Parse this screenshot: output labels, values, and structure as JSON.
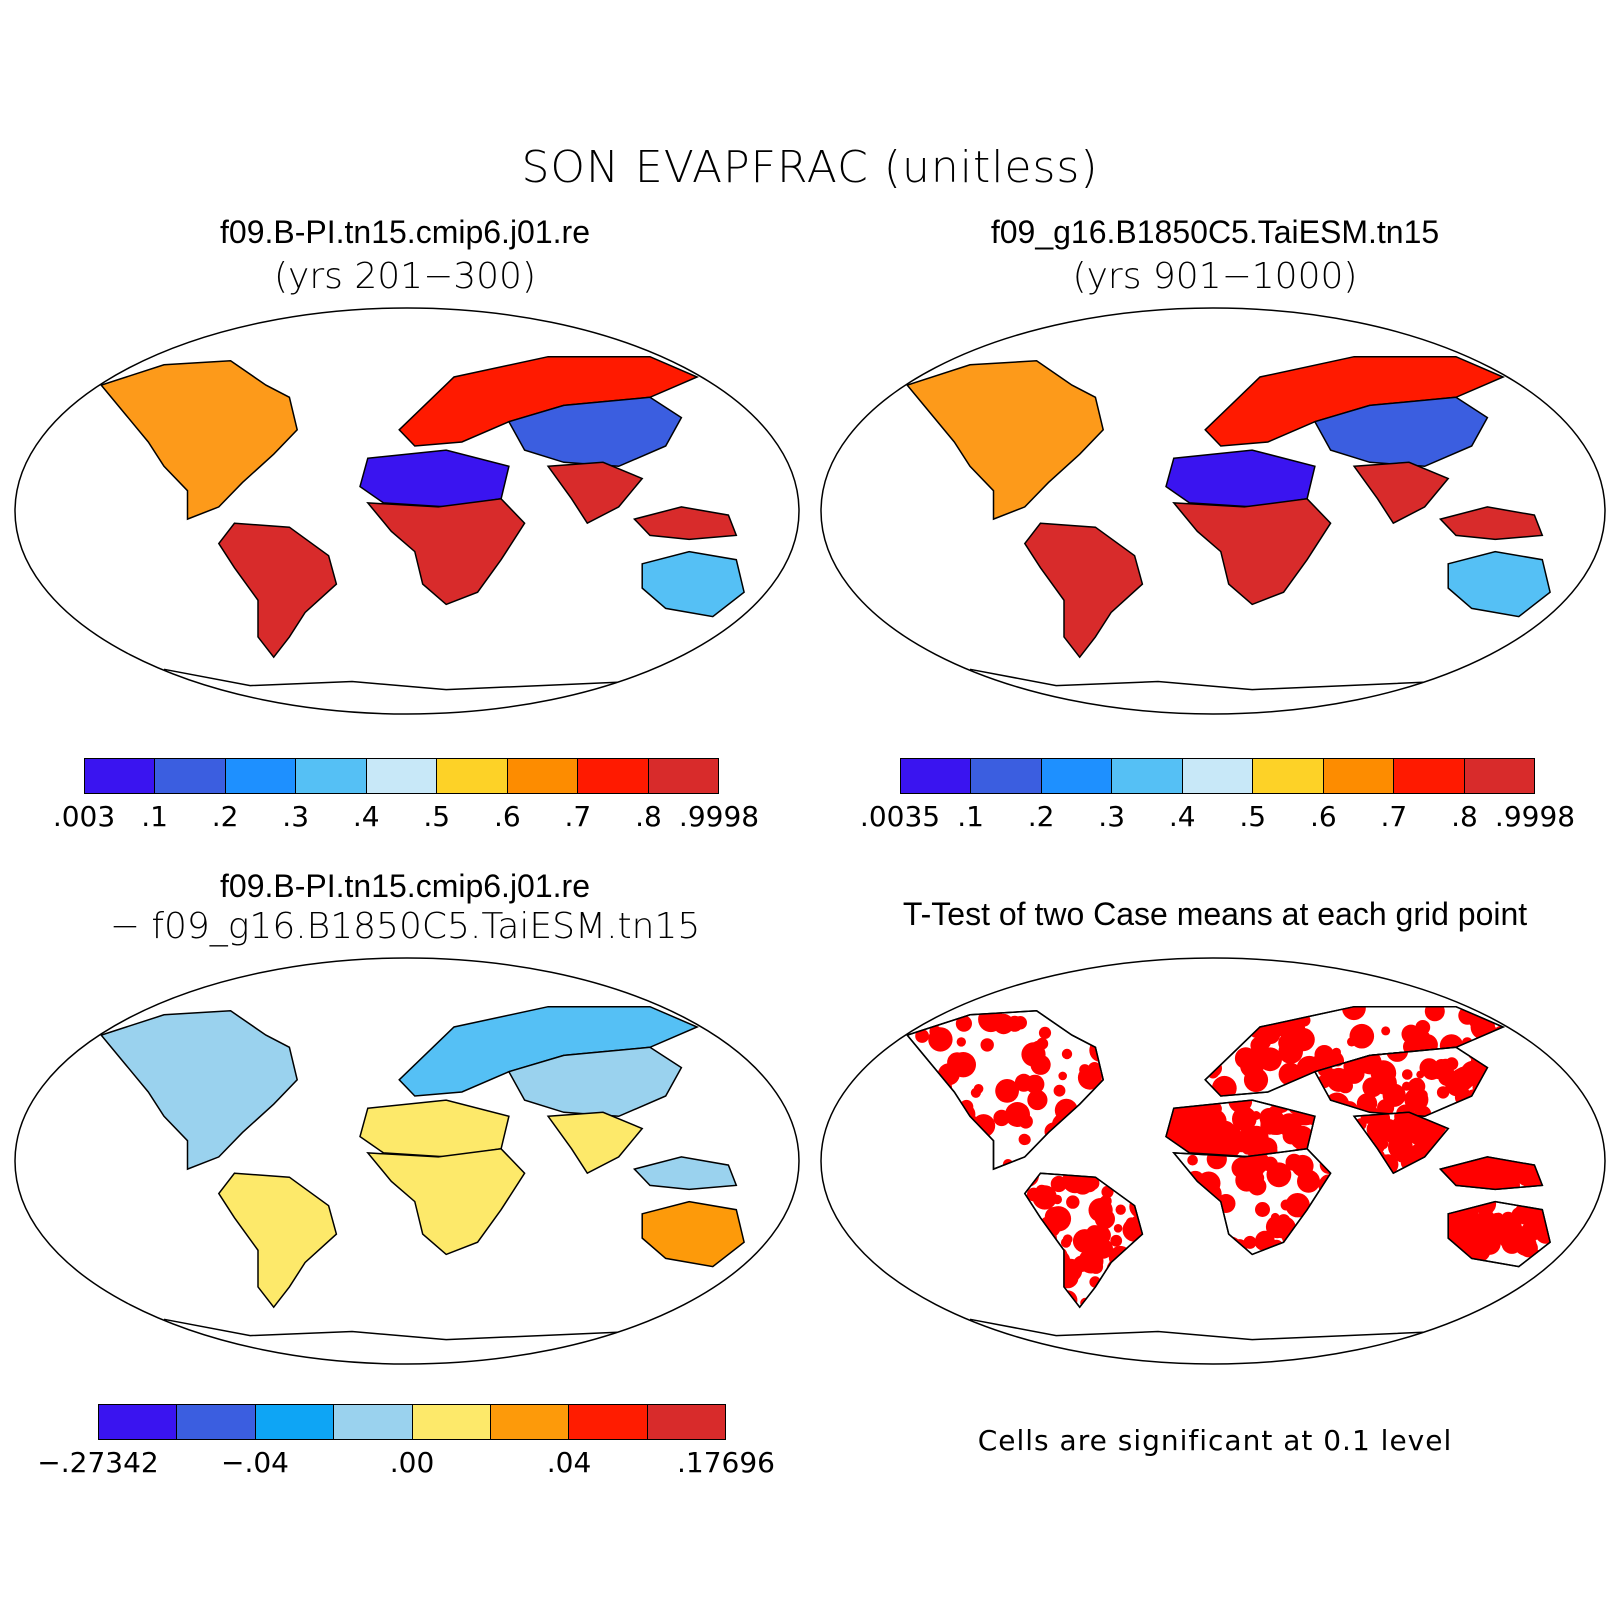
{
  "title": "SON EVAPFRAC (unitless)",
  "panels": [
    {
      "title": "f09.B-PI.tn15.cmip6.j01.re",
      "subtitle": "(yrs 201−300)"
    },
    {
      "title": "f09_g16.B1850C5.TaiESM.tn15",
      "subtitle": "(yrs 901−1000)"
    },
    {
      "title": "f09.B-PI.tn15.cmip6.j01.re",
      "subtitle": "− f09_g16.B1850C5.TaiESM.tn15"
    },
    {
      "title": "T-Test of two Case means at each grid point",
      "subtitle": ""
    }
  ],
  "colorbars": [
    {
      "colors": [
        "#3a14f0",
        "#3b5ee0",
        "#1e90ff",
        "#55c0f5",
        "#c8e8f8",
        "#fdd227",
        "#fd8c00",
        "#ff1a00",
        "#d82b2b"
      ],
      "labels": [
        ".003",
        ".1",
        ".2",
        ".3",
        ".4",
        ".5",
        ".6",
        ".7",
        ".8",
        ".9998"
      ]
    },
    {
      "colors": [
        "#3a14f0",
        "#3b5ee0",
        "#1e90ff",
        "#55c0f5",
        "#c8e8f8",
        "#fdd227",
        "#fd8c00",
        "#ff1a00",
        "#d82b2b"
      ],
      "labels": [
        ".0035",
        ".1",
        ".2",
        ".3",
        ".4",
        ".5",
        ".6",
        ".7",
        ".8",
        ".9998"
      ]
    },
    {
      "colors": [
        "#3a14f0",
        "#3b5ee0",
        "#0ea5f5",
        "#9ad2ee",
        "#fde96a",
        "#fd9a0a",
        "#ff1c00",
        "#d82b2b"
      ],
      "labels": [
        "−.27342",
        "−.04",
        ".00",
        ".04",
        ".17696"
      ]
    }
  ],
  "significance_note": "Cells are significant at 0.1 level",
  "map_colors": {
    "panel1": {
      "north_america": "#fd9a1a",
      "south_america": "#d82b2b",
      "sahara": "#3a14f0",
      "central_africa": "#d82b2b",
      "europe": "#ff1a00",
      "asia": "#3b5ee0",
      "india": "#d82b2b",
      "australia": "#55c0f5",
      "seasia": "#d82b2b"
    },
    "panel2": {
      "north_america": "#fd9a1a",
      "south_america": "#d82b2b",
      "sahara": "#3a14f0",
      "central_africa": "#d82b2b",
      "europe": "#ff1a00",
      "asia": "#3b5ee0",
      "india": "#d82b2b",
      "australia": "#55c0f5",
      "seasia": "#d82b2b"
    },
    "panel3": {
      "north_america": "#9ad2ee",
      "south_america": "#fde96a",
      "sahara": "#fde96a",
      "central_africa": "#fde96a",
      "europe": "#55c0f5",
      "asia": "#9ad2ee",
      "india": "#fde96a",
      "australia": "#fd9a0a",
      "seasia": "#9ad2ee"
    },
    "panel4": {
      "significant": "#ff0000"
    }
  }
}
